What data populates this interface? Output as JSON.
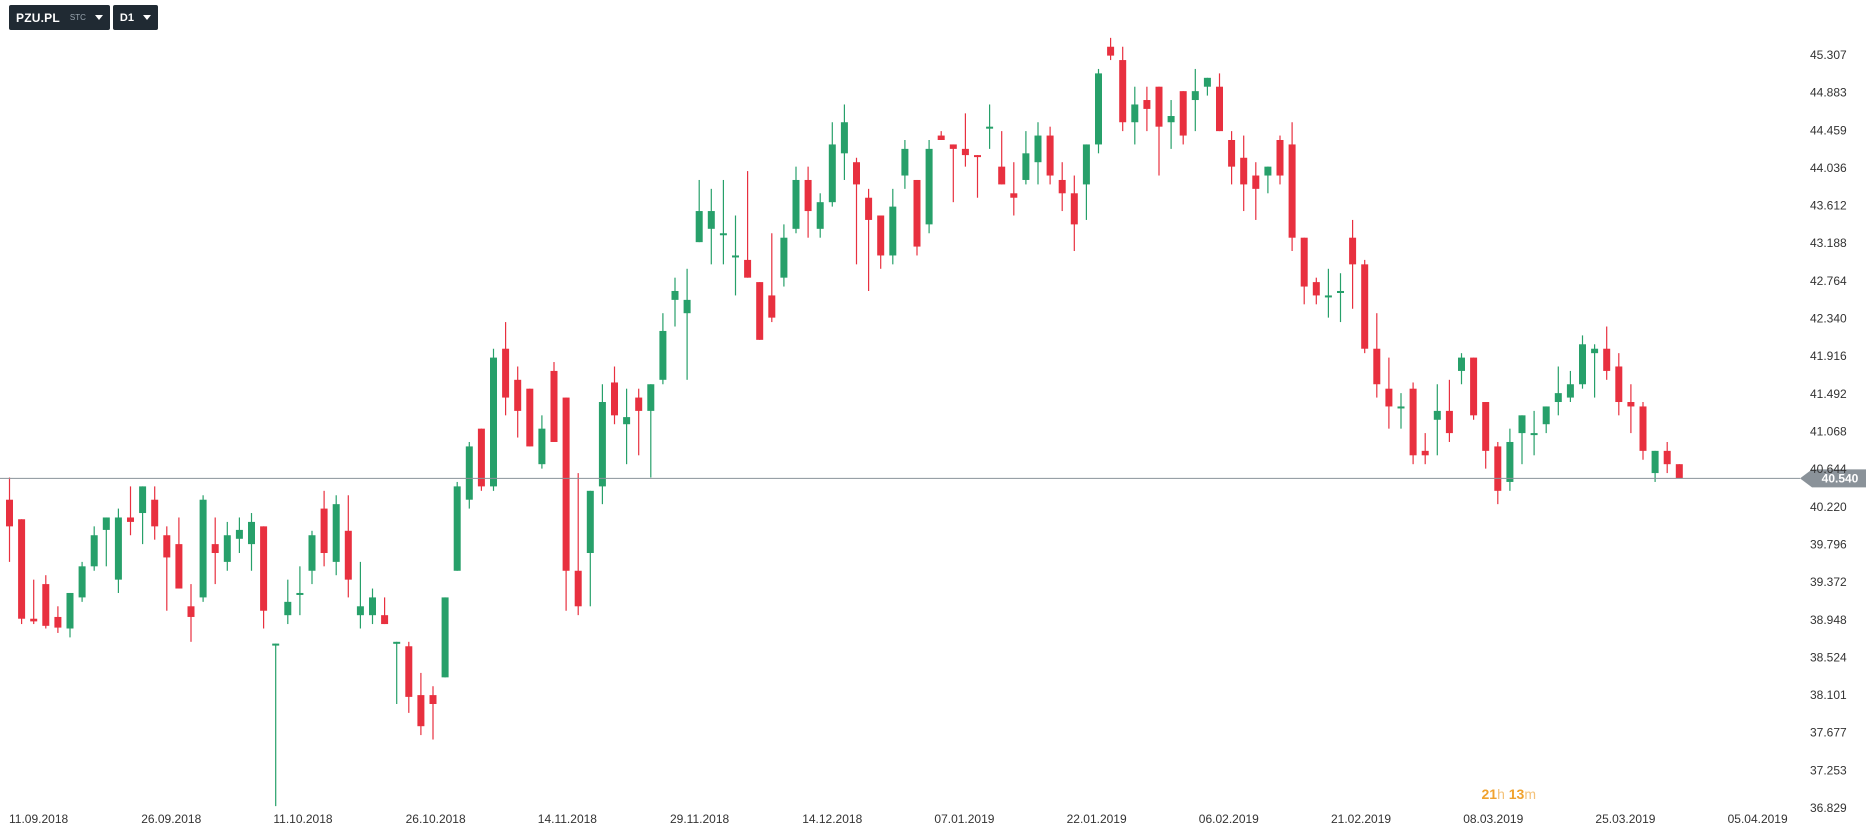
{
  "toolbar": {
    "symbol": "PZU.PL",
    "symbol_sub": "STC",
    "timeframe": "D1"
  },
  "timer": {
    "hours": "21",
    "h_unit": "h",
    "minutes": "13",
    "m_unit": "m"
  },
  "colors": {
    "up": "#27a06a",
    "down": "#e8303f",
    "price_line": "#8a9299",
    "price_tag": "#8a9299",
    "background": "#ffffff"
  },
  "chart_data": {
    "type": "candlestick",
    "title": "",
    "y_ticks": [
      "45.307",
      "44.883",
      "44.459",
      "44.036",
      "43.612",
      "43.188",
      "42.764",
      "42.340",
      "41.916",
      "41.492",
      "41.068",
      "40.644",
      "40.220",
      "39.796",
      "39.372",
      "38.948",
      "38.524",
      "38.101",
      "37.677",
      "37.253",
      "36.829"
    ],
    "ylim": [
      36.829,
      45.307
    ],
    "x_ticks": [
      "11.09.2018",
      "26.09.2018",
      "11.10.2018",
      "26.10.2018",
      "14.11.2018",
      "29.11.2018",
      "14.12.2018",
      "07.01.2019",
      "22.01.2019",
      "06.02.2019",
      "21.02.2019",
      "08.03.2019",
      "25.03.2019",
      "05.04.2019"
    ],
    "current_price": "40.540",
    "grid": false,
    "candles": [
      [
        40.3,
        40.55,
        40.0,
        39.6
      ],
      [
        40.08,
        40.08,
        38.96,
        38.9
      ],
      [
        38.96,
        39.4,
        38.93,
        38.9
      ],
      [
        39.35,
        39.45,
        38.88,
        38.85
      ],
      [
        38.98,
        39.1,
        38.86,
        38.8
      ],
      [
        38.85,
        39.25,
        39.25,
        38.75
      ],
      [
        39.2,
        39.6,
        39.55,
        39.15
      ],
      [
        39.55,
        40.0,
        39.9,
        39.5
      ],
      [
        39.96,
        40.1,
        40.1,
        39.55
      ],
      [
        39.4,
        40.2,
        40.1,
        39.25
      ],
      [
        40.1,
        40.45,
        40.05,
        39.9
      ],
      [
        40.15,
        40.45,
        40.45,
        39.8
      ],
      [
        40.3,
        40.45,
        40.0,
        39.85
      ],
      [
        39.9,
        40.0,
        39.65,
        39.05
      ],
      [
        39.8,
        40.1,
        39.3,
        39.3
      ],
      [
        39.1,
        39.35,
        38.98,
        38.7
      ],
      [
        39.2,
        40.35,
        40.3,
        39.15
      ],
      [
        39.8,
        40.1,
        39.7,
        39.35
      ],
      [
        39.6,
        40.05,
        39.9,
        39.5
      ],
      [
        39.86,
        40.1,
        39.96,
        39.7
      ],
      [
        39.8,
        40.15,
        40.05,
        39.5
      ],
      [
        40.0,
        40.0,
        39.05,
        38.85
      ],
      [
        38.68,
        38.68,
        38.68,
        36.85
      ],
      [
        39.0,
        39.4,
        39.15,
        38.9
      ],
      [
        39.25,
        39.55,
        39.25,
        39.0
      ],
      [
        39.5,
        39.95,
        39.9,
        39.35
      ],
      [
        40.2,
        40.4,
        39.7,
        39.55
      ],
      [
        39.6,
        40.35,
        40.25,
        39.45
      ],
      [
        39.95,
        40.35,
        39.4,
        39.2
      ],
      [
        39.0,
        39.6,
        39.1,
        38.85
      ],
      [
        39.0,
        39.3,
        39.2,
        38.9
      ],
      [
        39.0,
        39.2,
        38.9,
        38.9
      ],
      [
        38.7,
        38.7,
        38.7,
        38.0
      ],
      [
        38.65,
        38.7,
        38.08,
        37.9
      ],
      [
        38.1,
        38.35,
        37.75,
        37.65
      ],
      [
        38.1,
        38.2,
        38.0,
        37.6
      ],
      [
        38.3,
        39.2,
        39.2,
        38.3
      ],
      [
        39.5,
        40.5,
        40.45,
        39.5
      ],
      [
        40.3,
        40.95,
        40.9,
        40.2
      ],
      [
        41.1,
        41.1,
        40.45,
        40.4
      ],
      [
        40.45,
        42.0,
        41.9,
        40.4
      ],
      [
        42.0,
        42.3,
        41.45,
        41.25
      ],
      [
        41.65,
        41.8,
        41.3,
        41.0
      ],
      [
        41.55,
        41.55,
        40.9,
        40.9
      ],
      [
        40.7,
        41.25,
        41.1,
        40.65
      ],
      [
        41.75,
        41.85,
        40.95,
        40.95
      ],
      [
        41.45,
        41.45,
        39.5,
        39.05
      ],
      [
        39.5,
        40.6,
        39.1,
        39.0
      ],
      [
        39.7,
        40.4,
        40.4,
        39.1
      ],
      [
        40.45,
        41.6,
        41.4,
        40.25
      ],
      [
        41.62,
        41.8,
        41.25,
        41.15
      ],
      [
        41.15,
        41.55,
        41.23,
        40.7
      ],
      [
        41.45,
        41.55,
        41.3,
        40.8
      ],
      [
        41.3,
        41.6,
        41.6,
        40.55
      ],
      [
        41.65,
        42.4,
        42.2,
        41.6
      ],
      [
        42.55,
        42.8,
        42.65,
        42.25
      ],
      [
        42.4,
        42.9,
        42.55,
        41.65
      ],
      [
        43.2,
        43.9,
        43.55,
        43.2
      ],
      [
        43.35,
        43.8,
        43.55,
        42.95
      ],
      [
        43.3,
        43.9,
        43.3,
        42.95
      ],
      [
        43.05,
        43.5,
        43.05,
        42.6
      ],
      [
        43.0,
        44.0,
        42.8,
        42.8
      ],
      [
        42.75,
        42.75,
        42.1,
        42.1
      ],
      [
        42.6,
        43.3,
        42.35,
        42.3
      ],
      [
        42.8,
        43.4,
        43.25,
        42.7
      ],
      [
        43.35,
        44.05,
        43.9,
        43.3
      ],
      [
        43.9,
        44.05,
        43.55,
        43.25
      ],
      [
        43.35,
        43.75,
        43.65,
        43.25
      ],
      [
        43.65,
        44.55,
        44.3,
        43.6
      ],
      [
        44.2,
        44.75,
        44.55,
        43.9
      ],
      [
        44.1,
        44.15,
        43.85,
        42.95
      ],
      [
        43.7,
        43.8,
        43.45,
        42.65
      ],
      [
        43.5,
        43.5,
        43.05,
        42.9
      ],
      [
        43.05,
        43.8,
        43.6,
        42.95
      ],
      [
        43.95,
        44.35,
        44.25,
        43.8
      ],
      [
        43.9,
        43.9,
        43.15,
        43.05
      ],
      [
        43.4,
        44.35,
        44.25,
        43.3
      ],
      [
        44.4,
        44.45,
        44.35,
        44.35
      ],
      [
        44.3,
        44.3,
        44.25,
        43.65
      ],
      [
        44.25,
        44.65,
        44.18,
        44.05
      ],
      [
        44.18,
        44.18,
        44.16,
        43.7
      ],
      [
        44.48,
        44.75,
        44.5,
        44.25
      ],
      [
        44.05,
        44.45,
        43.85,
        43.85
      ],
      [
        43.75,
        44.1,
        43.7,
        43.5
      ],
      [
        43.9,
        44.45,
        44.2,
        43.85
      ],
      [
        44.1,
        44.55,
        44.4,
        43.85
      ],
      [
        44.4,
        44.5,
        43.95,
        43.85
      ],
      [
        43.9,
        44.1,
        43.75,
        43.55
      ],
      [
        43.75,
        43.95,
        43.4,
        43.1
      ],
      [
        43.85,
        44.3,
        44.3,
        43.45
      ],
      [
        44.3,
        45.15,
        45.1,
        44.2
      ],
      [
        45.4,
        45.5,
        45.3,
        45.25
      ],
      [
        45.25,
        45.4,
        44.55,
        44.45
      ],
      [
        44.55,
        44.95,
        44.75,
        44.3
      ],
      [
        44.8,
        44.95,
        44.7,
        44.45
      ],
      [
        44.95,
        44.95,
        44.5,
        43.95
      ],
      [
        44.55,
        44.8,
        44.62,
        44.25
      ],
      [
        44.9,
        44.9,
        44.4,
        44.3
      ],
      [
        44.8,
        45.15,
        44.9,
        44.45
      ],
      [
        44.95,
        45.05,
        45.05,
        44.85
      ],
      [
        44.95,
        45.1,
        44.45,
        44.45
      ],
      [
        44.35,
        44.45,
        44.05,
        43.85
      ],
      [
        44.15,
        44.4,
        43.85,
        43.55
      ],
      [
        43.95,
        44.1,
        43.8,
        43.45
      ],
      [
        43.95,
        44.05,
        44.05,
        43.75
      ],
      [
        44.35,
        44.4,
        43.95,
        43.85
      ],
      [
        44.3,
        44.55,
        43.25,
        43.1
      ],
      [
        43.25,
        43.25,
        42.7,
        42.5
      ],
      [
        42.75,
        42.8,
        42.6,
        42.5
      ],
      [
        42.6,
        42.9,
        42.6,
        42.35
      ],
      [
        42.65,
        42.85,
        42.65,
        42.3
      ],
      [
        43.25,
        43.45,
        42.95,
        42.45
      ],
      [
        42.95,
        43.0,
        42.0,
        41.95
      ],
      [
        42.0,
        42.4,
        41.6,
        41.45
      ],
      [
        41.55,
        41.9,
        41.35,
        41.1
      ],
      [
        41.35,
        41.5,
        41.35,
        41.1
      ],
      [
        41.55,
        41.62,
        40.8,
        40.7
      ],
      [
        40.85,
        41.05,
        40.8,
        40.7
      ],
      [
        41.2,
        41.6,
        41.3,
        40.8
      ],
      [
        41.3,
        41.65,
        41.05,
        40.95
      ],
      [
        41.75,
        41.95,
        41.9,
        41.6
      ],
      [
        41.9,
        41.9,
        41.25,
        41.2
      ],
      [
        41.4,
        41.4,
        40.85,
        40.65
      ],
      [
        40.9,
        40.95,
        40.4,
        40.25
      ],
      [
        40.5,
        41.1,
        40.95,
        40.4
      ],
      [
        41.05,
        41.15,
        41.25,
        40.7
      ],
      [
        41.05,
        41.3,
        41.05,
        40.8
      ],
      [
        41.15,
        41.35,
        41.35,
        41.05
      ],
      [
        41.4,
        41.8,
        41.5,
        41.25
      ],
      [
        41.45,
        41.75,
        41.6,
        41.4
      ],
      [
        41.6,
        42.15,
        42.05,
        41.55
      ],
      [
        41.95,
        42.05,
        42.0,
        41.45
      ],
      [
        42.0,
        42.25,
        41.75,
        41.65
      ],
      [
        41.8,
        41.95,
        41.4,
        41.25
      ],
      [
        41.4,
        41.6,
        41.35,
        41.05
      ],
      [
        41.35,
        41.4,
        40.85,
        40.75
      ],
      [
        40.6,
        40.85,
        40.85,
        40.5
      ],
      [
        40.85,
        40.95,
        40.7,
        40.6
      ],
      [
        40.7,
        40.7,
        40.54,
        40.54
      ]
    ]
  }
}
